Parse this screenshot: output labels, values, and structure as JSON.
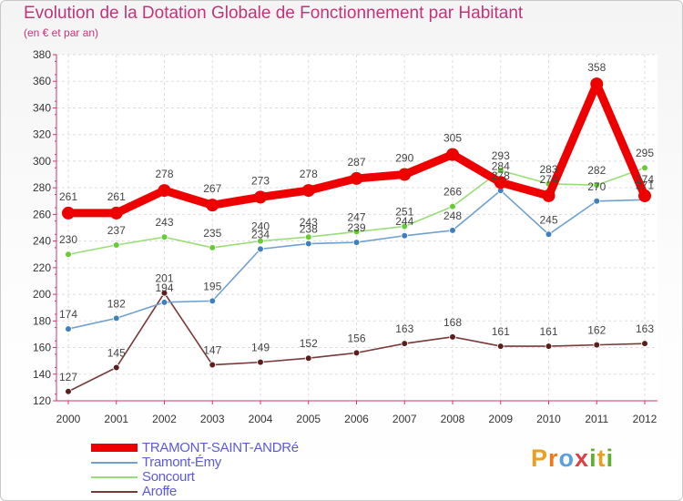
{
  "title": "Evolution de la Dotation Globale de Fonctionnement par Habitant",
  "subtitle": "(en € et par an)",
  "colors": {
    "title": "#c0357a",
    "axis": "#d6336c",
    "legend_text": "#5b5bd6"
  },
  "logo": {
    "letters": [
      "P",
      "r",
      "o",
      "x",
      "i",
      "t",
      "i"
    ],
    "colors": [
      "#e8a020",
      "#f07a1a",
      "#5aa0e0",
      "#e04040",
      "#60b030",
      "#e8a020",
      "#60b030"
    ]
  },
  "chart_data": {
    "type": "line",
    "title": "Evolution de la Dotation Globale de Fonctionnement par Habitant",
    "ylabel": "(en € et par an)",
    "xlabel": "",
    "ylim": [
      120,
      380
    ],
    "yticks": [
      120,
      140,
      160,
      180,
      200,
      220,
      240,
      260,
      280,
      300,
      320,
      340,
      360,
      380
    ],
    "grid": true,
    "x": [
      2000,
      2001,
      2002,
      2003,
      2004,
      2005,
      2006,
      2007,
      2008,
      2009,
      2010,
      2011,
      2012
    ],
    "legend_position": "bottom-left",
    "series": [
      {
        "name": "TRAMONT-SAINT-ANDRé",
        "color": "#ee0000",
        "thick": true,
        "values": [
          261,
          261,
          278,
          267,
          273,
          278,
          287,
          290,
          305,
          284,
          274,
          358,
          274
        ],
        "labels": [
          "261",
          "261",
          "278",
          "267",
          "273",
          "278",
          "287",
          "290",
          "305",
          "284",
          "274",
          "358",
          "274"
        ]
      },
      {
        "name": "Tramont-Émy",
        "color": "#6fa0cf",
        "marker": "#3f7fc0",
        "values": [
          174,
          182,
          194,
          195,
          234,
          238,
          239,
          244,
          248,
          278,
          245,
          270,
          271
        ],
        "labels": [
          "174",
          "182",
          "194",
          "195",
          "234",
          "238",
          "239",
          "244",
          "248",
          "278",
          "245",
          "270",
          "271"
        ]
      },
      {
        "name": "Soncourt",
        "color": "#99dd77",
        "marker": "#66cc33",
        "values": [
          230,
          237,
          243,
          235,
          240,
          243,
          247,
          251,
          266,
          293,
          283,
          282,
          295
        ],
        "labels": [
          "230",
          "237",
          "243",
          "235",
          "240",
          "243",
          "247",
          "251",
          "266",
          "293",
          "283",
          "282",
          "295"
        ]
      },
      {
        "name": "Aroffe",
        "color": "#7a3838",
        "marker": "#5a1e1e",
        "values": [
          127,
          145,
          201,
          147,
          149,
          152,
          156,
          163,
          168,
          161,
          161,
          162,
          163
        ],
        "labels": [
          "127",
          "145",
          "201",
          "147",
          "149",
          "152",
          "156",
          "163",
          "168",
          "161",
          "161",
          "162",
          "163"
        ]
      }
    ]
  }
}
